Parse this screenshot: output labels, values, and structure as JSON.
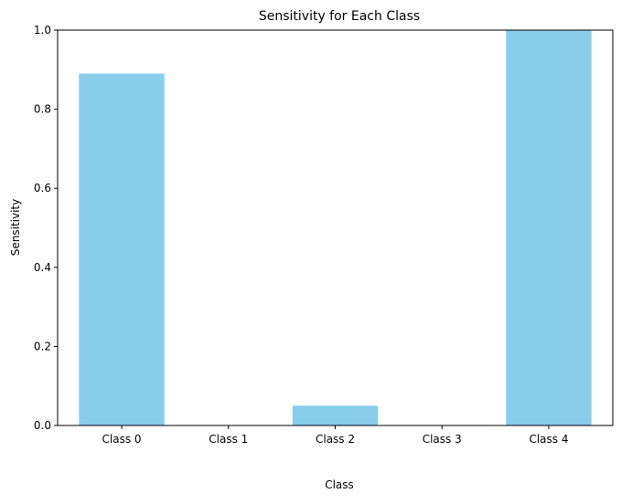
{
  "chart_data": {
    "type": "bar",
    "title": "Sensitivity for Each Class",
    "xlabel": "Class",
    "ylabel": "Sensitivity",
    "categories": [
      "Class 0",
      "Class 1",
      "Class 2",
      "Class 3",
      "Class 4"
    ],
    "values": [
      0.89,
      0.0,
      0.05,
      0.0,
      1.0
    ],
    "ylim": [
      0,
      1.0
    ],
    "yticks": [
      "0.0",
      "0.2",
      "0.4",
      "0.6",
      "0.8",
      "1.0"
    ],
    "bar_color": "#87ceeb",
    "grid": false,
    "legend": "none"
  }
}
